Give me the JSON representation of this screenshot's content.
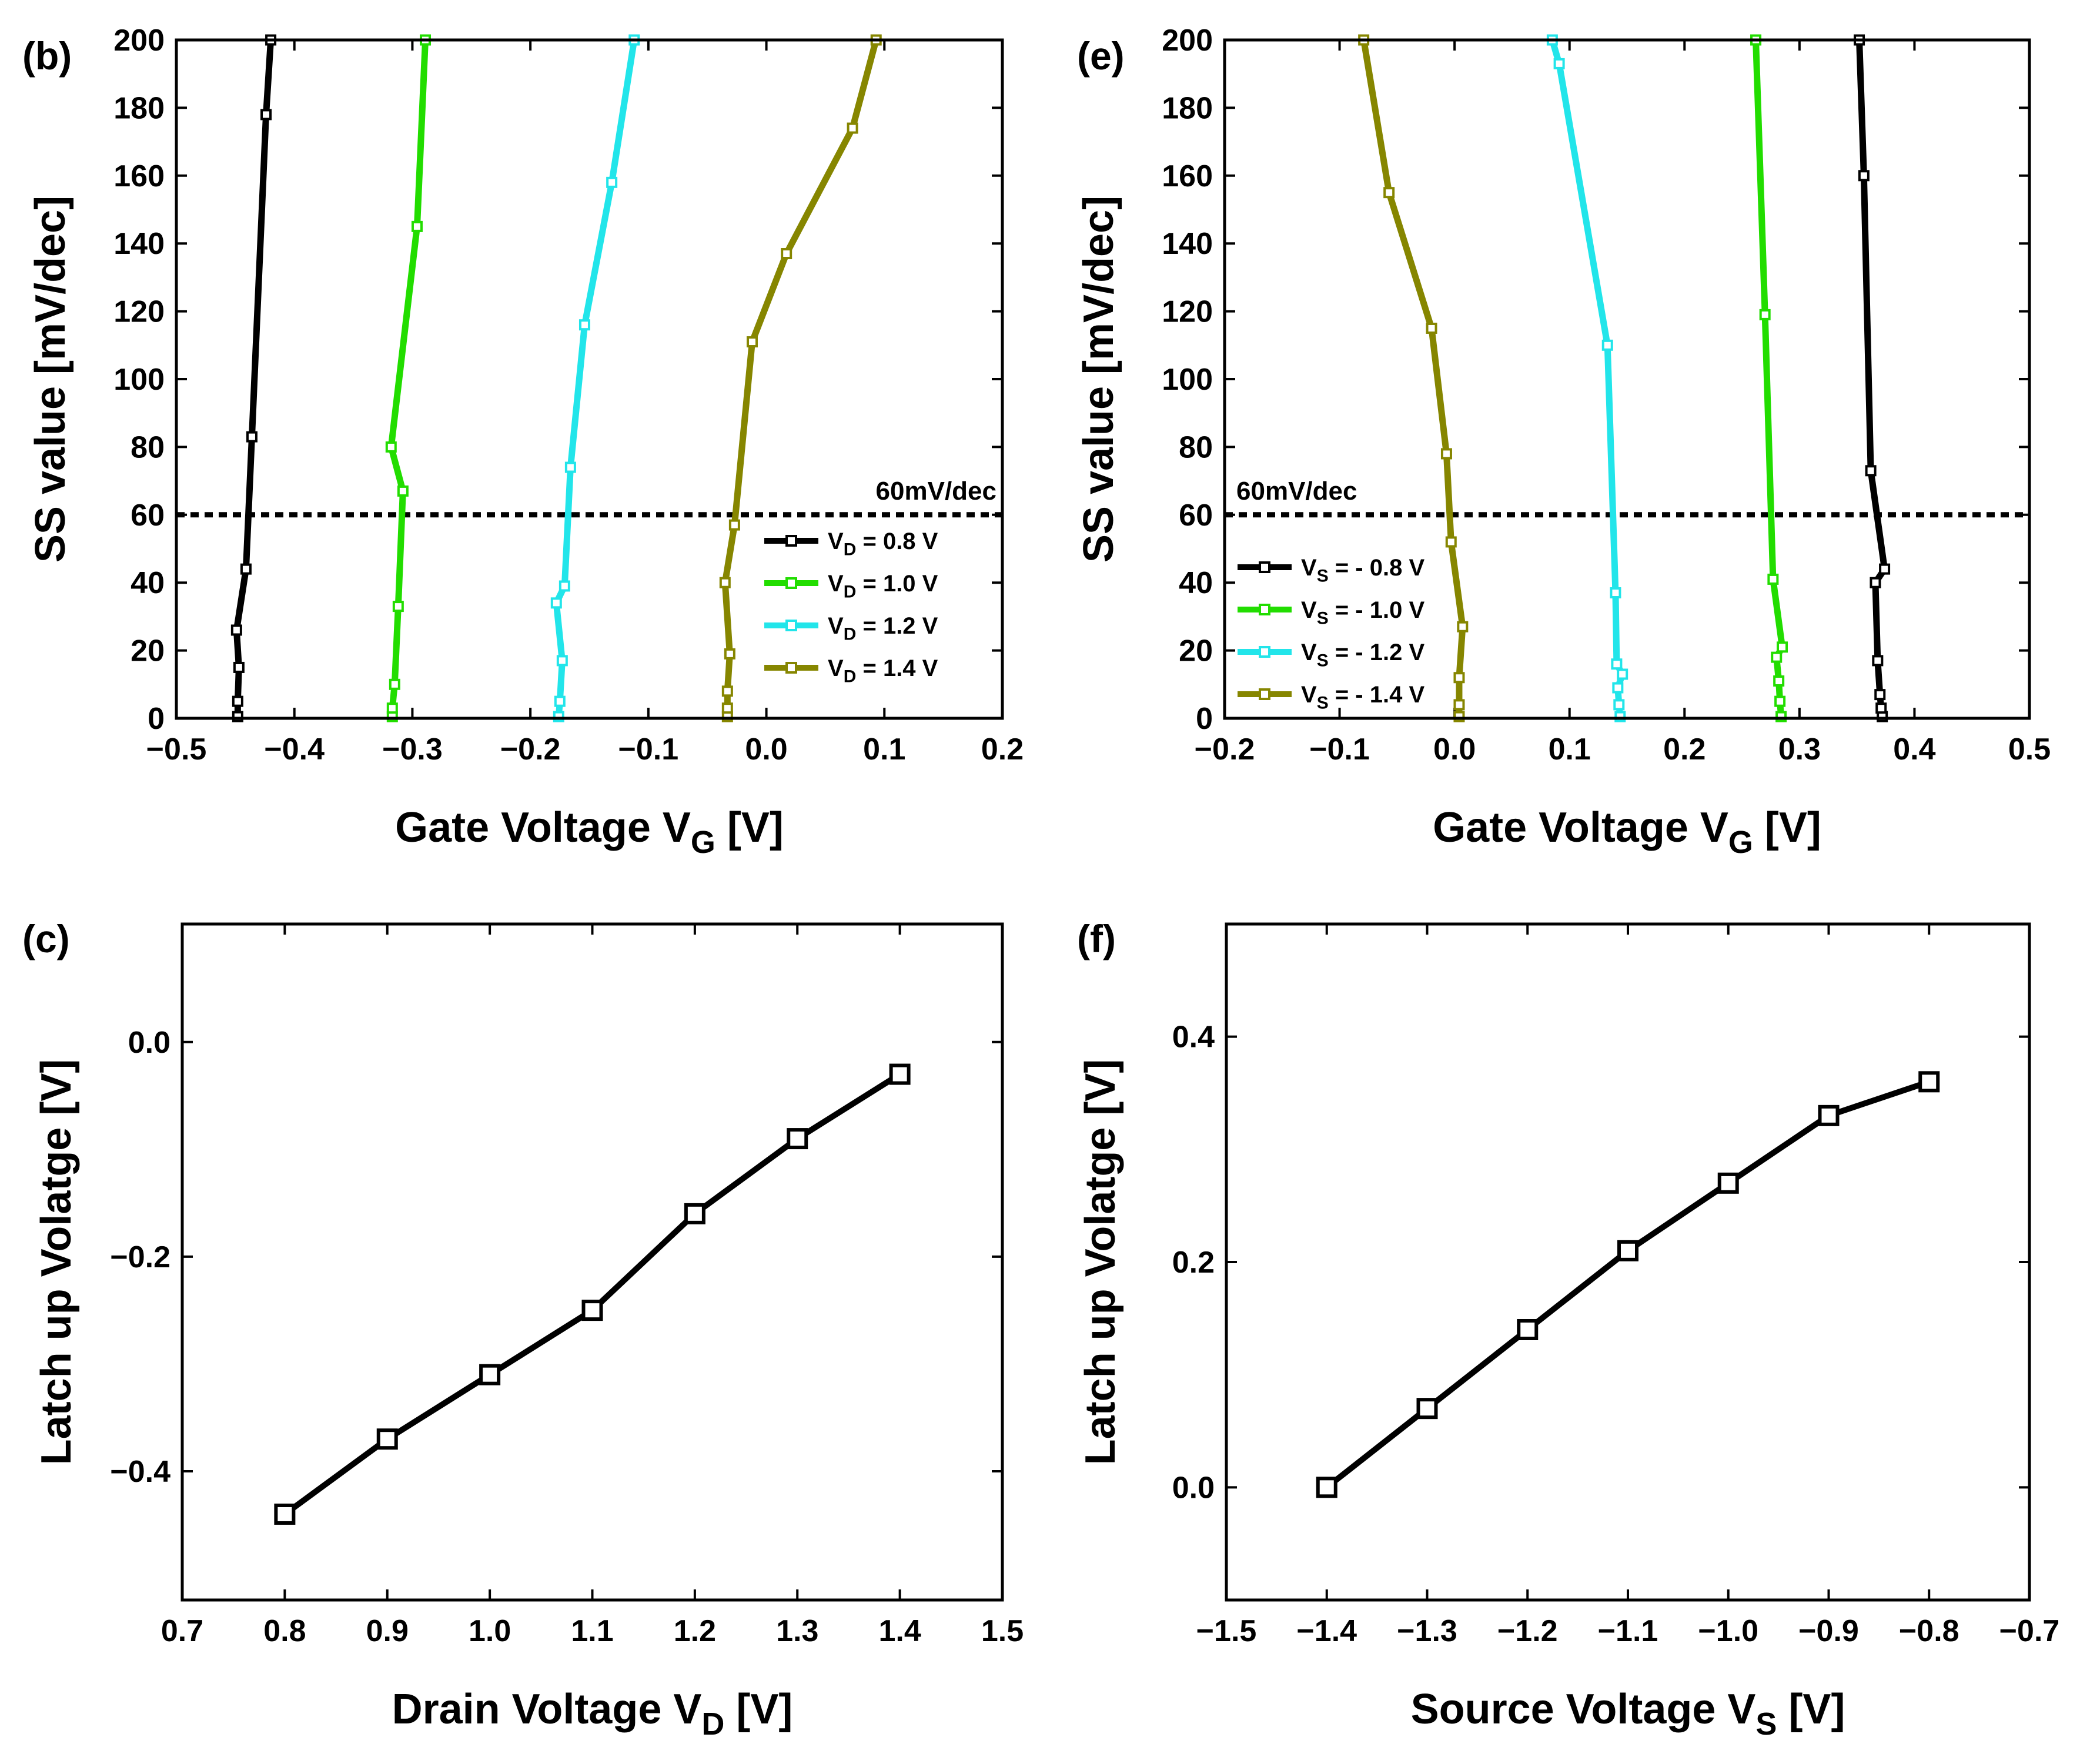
{
  "chart_data": [
    {
      "panel": "(b)",
      "type": "line",
      "xlabel": "Gate Voltage V",
      "xlabel_sub": "G",
      "xlabel_suffix": " [V]",
      "ylabel": "SS value [mV/dec]",
      "xlim": [
        -0.5,
        0.2
      ],
      "ylim": [
        0,
        200
      ],
      "xticks": [
        -0.5,
        -0.4,
        -0.3,
        -0.2,
        -0.1,
        0.0,
        0.1,
        0.2
      ],
      "xtick_labels": [
        "−0.5",
        "−0.4",
        "−0.3",
        "−0.2",
        "−0.1",
        "0.0",
        "0.1",
        "0.2"
      ],
      "yticks": [
        0,
        20,
        40,
        60,
        80,
        100,
        120,
        140,
        160,
        180,
        200
      ],
      "ytick_labels": [
        "0",
        "20",
        "40",
        "60",
        "80",
        "100",
        "120",
        "140",
        "160",
        "180",
        "200"
      ],
      "reference_line": {
        "y": 60,
        "label": "60mV/dec"
      },
      "legend_position": "lower-right",
      "series": [
        {
          "name": "V_D = 0.8 V",
          "label_main": "V",
          "label_sub": "D",
          "label_rest": " = 0.8 V",
          "color": "#000000",
          "points": [
            [
              -0.448,
              0.5
            ],
            [
              -0.448,
              5
            ],
            [
              -0.447,
              15
            ],
            [
              -0.449,
              26
            ],
            [
              -0.441,
              44
            ],
            [
              -0.436,
              83
            ],
            [
              -0.424,
              178
            ],
            [
              -0.42,
              200
            ]
          ]
        },
        {
          "name": "V_D = 1.0 V",
          "label_main": "V",
          "label_sub": "D",
          "label_rest": " = 1.0 V",
          "color": "#22dd00",
          "points": [
            [
              -0.317,
              0.5
            ],
            [
              -0.317,
              3
            ],
            [
              -0.315,
              10
            ],
            [
              -0.312,
              33
            ],
            [
              -0.308,
              67
            ],
            [
              -0.318,
              80
            ],
            [
              -0.296,
              145
            ],
            [
              -0.289,
              200
            ]
          ]
        },
        {
          "name": "V_D = 1.2 V",
          "label_main": "V",
          "label_sub": "D",
          "label_rest": " = 1.2 V",
          "color": "#22e5ea",
          "points": [
            [
              -0.176,
              0.5
            ],
            [
              -0.175,
              5
            ],
            [
              -0.173,
              17
            ],
            [
              -0.178,
              34
            ],
            [
              -0.171,
              39
            ],
            [
              -0.166,
              74
            ],
            [
              -0.154,
              116
            ],
            [
              -0.131,
              158
            ],
            [
              -0.112,
              200
            ]
          ]
        },
        {
          "name": "V_D = 1.4 V",
          "label_main": "V",
          "label_sub": "D",
          "label_rest": " = 1.4 V",
          "color": "#868600",
          "points": [
            [
              -0.033,
              0.5
            ],
            [
              -0.033,
              3
            ],
            [
              -0.033,
              8
            ],
            [
              -0.031,
              19
            ],
            [
              -0.035,
              40
            ],
            [
              -0.027,
              57
            ],
            [
              -0.012,
              111
            ],
            [
              0.017,
              137
            ],
            [
              0.073,
              174
            ],
            [
              0.093,
              200
            ]
          ]
        }
      ]
    },
    {
      "panel": "(e)",
      "type": "line",
      "xlabel": "Gate Voltage V",
      "xlabel_sub": "G",
      "xlabel_suffix": " [V]",
      "ylabel": "SS value [mV/dec]",
      "xlim": [
        -0.2,
        0.5
      ],
      "ylim": [
        0,
        200
      ],
      "xticks": [
        -0.2,
        -0.1,
        0.0,
        0.1,
        0.2,
        0.3,
        0.4,
        0.5
      ],
      "xtick_labels": [
        "−0.2",
        "−0.1",
        "0.0",
        "0.1",
        "0.2",
        "0.3",
        "0.4",
        "0.5"
      ],
      "yticks": [
        0,
        20,
        40,
        60,
        80,
        100,
        120,
        140,
        160,
        180,
        200
      ],
      "ytick_labels": [
        "0",
        "20",
        "40",
        "60",
        "80",
        "100",
        "120",
        "140",
        "160",
        "180",
        "200"
      ],
      "reference_line": {
        "y": 60,
        "label": "60mV/dec"
      },
      "legend_position": "lower-left",
      "series": [
        {
          "name": "V_S = - 0.8 V",
          "label_main": "V",
          "label_sub": "S",
          "label_rest": " = - 0.8 V",
          "color": "#000000",
          "points": [
            [
              0.372,
              0.5
            ],
            [
              0.371,
              3
            ],
            [
              0.37,
              7
            ],
            [
              0.368,
              17
            ],
            [
              0.366,
              40
            ],
            [
              0.374,
              44
            ],
            [
              0.362,
              73
            ],
            [
              0.356,
              160
            ],
            [
              0.352,
              200
            ]
          ]
        },
        {
          "name": "V_S = - 1.0 V",
          "label_main": "V",
          "label_sub": "S",
          "label_rest": " = - 1.0 V",
          "color": "#22dd00",
          "points": [
            [
              0.284,
              0.5
            ],
            [
              0.283,
              5
            ],
            [
              0.282,
              11
            ],
            [
              0.28,
              18
            ],
            [
              0.285,
              21
            ],
            [
              0.277,
              41
            ],
            [
              0.27,
              119
            ],
            [
              0.262,
              200
            ]
          ]
        },
        {
          "name": "V_S = - 1.2 V",
          "label_main": "V",
          "label_sub": "S",
          "label_rest": " = - 1.2 V",
          "color": "#22e5ea",
          "points": [
            [
              0.144,
              0.5
            ],
            [
              0.143,
              4
            ],
            [
              0.142,
              9
            ],
            [
              0.146,
              13
            ],
            [
              0.141,
              16
            ],
            [
              0.14,
              37
            ],
            [
              0.133,
              110
            ],
            [
              0.091,
              193
            ],
            [
              0.085,
              200
            ]
          ]
        },
        {
          "name": "V_S = - 1.4 V",
          "label_main": "V",
          "label_sub": "S",
          "label_rest": " = - 1.4 V",
          "color": "#868600",
          "points": [
            [
              0.004,
              0.5
            ],
            [
              0.004,
              4
            ],
            [
              0.004,
              12
            ],
            [
              0.007,
              27
            ],
            [
              -0.003,
              52
            ],
            [
              -0.007,
              78
            ],
            [
              -0.02,
              115
            ],
            [
              -0.057,
              155
            ],
            [
              -0.079,
              200
            ]
          ]
        }
      ]
    },
    {
      "panel": "(c)",
      "type": "line",
      "xlabel": "Drain Voltage V",
      "xlabel_sub": "D",
      "xlabel_suffix": " [V]",
      "ylabel": "Latch up Volatge [V]",
      "xlim": [
        0.7,
        1.5
      ],
      "ylim": [
        -0.52,
        0.11
      ],
      "xticks": [
        0.7,
        0.8,
        0.9,
        1.0,
        1.1,
        1.2,
        1.3,
        1.4,
        1.5
      ],
      "xtick_labels": [
        "0.7",
        "0.8",
        "0.9",
        "1.0",
        "1.1",
        "1.2",
        "1.3",
        "1.4",
        "1.5"
      ],
      "yticks": [
        -0.4,
        -0.2,
        0.0
      ],
      "ytick_labels": [
        "−0.4",
        "−0.2",
        "0.0"
      ],
      "series": [
        {
          "name": "Latch up",
          "color": "#000000",
          "marker": "open-square",
          "points": [
            [
              0.8,
              -0.44
            ],
            [
              0.9,
              -0.37
            ],
            [
              1.0,
              -0.31
            ],
            [
              1.1,
              -0.25
            ],
            [
              1.2,
              -0.16
            ],
            [
              1.3,
              -0.09
            ],
            [
              1.4,
              -0.03
            ]
          ]
        }
      ]
    },
    {
      "panel": "(f)",
      "type": "line",
      "xlabel": "Source Voltage V",
      "xlabel_sub": "S",
      "xlabel_suffix": " [V]",
      "ylabel": "Latch up Volatge [V]",
      "xlim": [
        -1.5,
        -0.7
      ],
      "ylim": [
        -0.1,
        0.5
      ],
      "xticks": [
        -1.5,
        -1.4,
        -1.3,
        -1.2,
        -1.1,
        -1.0,
        -0.9,
        -0.8,
        -0.7
      ],
      "xtick_labels": [
        "−1.5",
        "−1.4",
        "−1.3",
        "−1.2",
        "−1.1",
        "−1.0",
        "−0.9",
        "−0.8",
        "−0.7"
      ],
      "yticks": [
        0.0,
        0.2,
        0.4
      ],
      "ytick_labels": [
        "0.0",
        "0.2",
        "0.4"
      ],
      "series": [
        {
          "name": "Latch up",
          "color": "#000000",
          "marker": "open-square",
          "points": [
            [
              -1.4,
              0.0
            ],
            [
              -1.3,
              0.07
            ],
            [
              -1.2,
              0.14
            ],
            [
              -1.1,
              0.21
            ],
            [
              -1.0,
              0.27
            ],
            [
              -0.9,
              0.33
            ],
            [
              -0.8,
              0.36
            ]
          ]
        }
      ]
    }
  ]
}
